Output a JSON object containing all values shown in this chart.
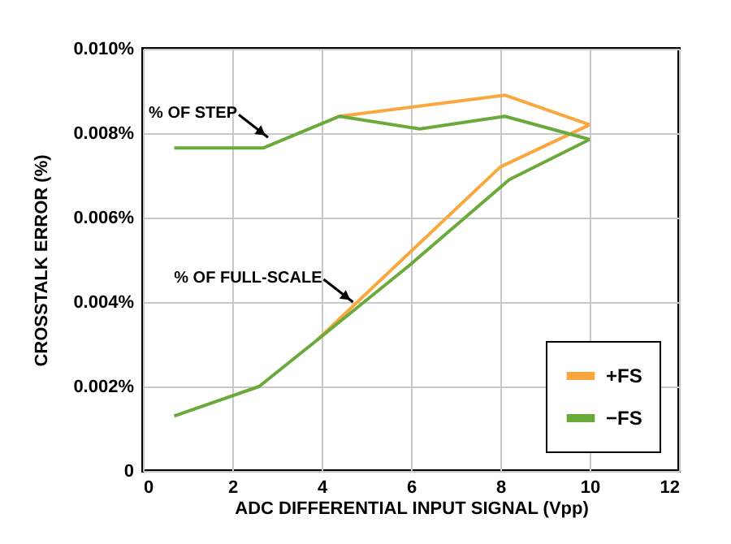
{
  "chart_data": {
    "type": "line",
    "xlabel": "ADC DIFFERENTIAL INPUT SIGNAL (Vpp)",
    "ylabel": "CROSSTALK ERROR (%)",
    "xlim": [
      0,
      12
    ],
    "xticks": [
      0,
      2,
      4,
      6,
      8,
      10,
      12
    ],
    "ylim": [
      0,
      0.01
    ],
    "yticks": [
      0,
      {
        "value": 0.002,
        "label": "0.002%"
      },
      {
        "value": 0.004,
        "label": "0.004%"
      },
      {
        "value": 0.006,
        "label": "0.006%"
      },
      {
        "value": 0.008,
        "label": "0.008%"
      },
      {
        "value": 0.01,
        "label": "0.010%"
      }
    ],
    "series": [
      {
        "name": "+FS",
        "color": "#f9a73e",
        "x": [
          4.4,
          8.1,
          10
        ],
        "values": [
          0.0084,
          0.0089,
          0.0082
        ]
      },
      {
        "color": "#f9a73e",
        "x": [
          3.9,
          8.0,
          10
        ],
        "values": [
          0.0031,
          0.0072,
          0.0082
        ]
      },
      {
        "name": "−FS",
        "color": "#6aaa3a",
        "x": [
          0.7,
          2.7,
          4.4,
          6.2,
          8.1,
          10
        ],
        "values": [
          0.00765,
          0.00765,
          0.0084,
          0.0081,
          0.0084,
          0.00785
        ]
      },
      {
        "color": "#6aaa3a",
        "x": [
          0.7,
          2.6,
          3.9,
          6.0,
          8.2,
          10
        ],
        "values": [
          0.0013,
          0.002,
          0.0031,
          0.0049,
          0.0069,
          0.00785
        ]
      }
    ],
    "annotations": [
      {
        "text": "% OF STEP",
        "x": 2.8,
        "y": 0.0079
      },
      {
        "text": "% OF FULL-SCALE",
        "x": 4.7,
        "y": 0.004
      }
    ],
    "grid": true,
    "legend": "bottom right",
    "marker": "none",
    "line_style": "solid"
  }
}
